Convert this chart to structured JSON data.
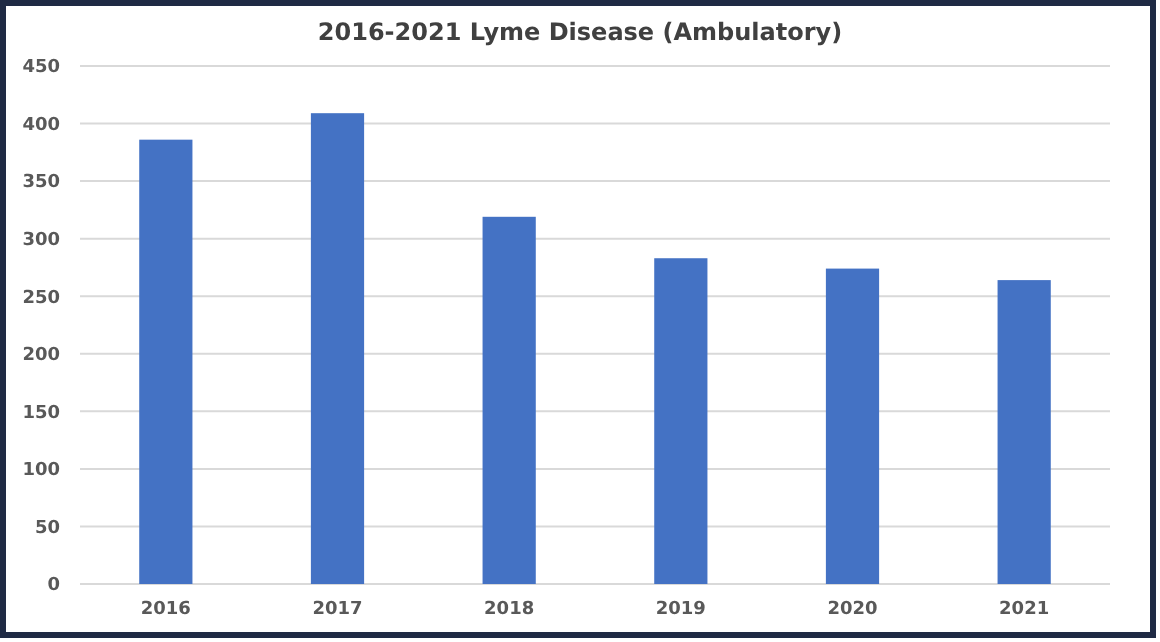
{
  "chart_data": {
    "type": "bar",
    "title": "2016-2021 Lyme Disease (Ambulatory)",
    "categories": [
      "2016",
      "2017",
      "2018",
      "2019",
      "2020",
      "2021"
    ],
    "values": [
      386,
      409,
      319,
      283,
      274,
      264
    ],
    "color": "#4472c4",
    "ylim": [
      0,
      450
    ],
    "yticks": [
      0,
      50,
      100,
      150,
      200,
      250,
      300,
      350,
      400,
      450
    ],
    "grid": "y"
  }
}
